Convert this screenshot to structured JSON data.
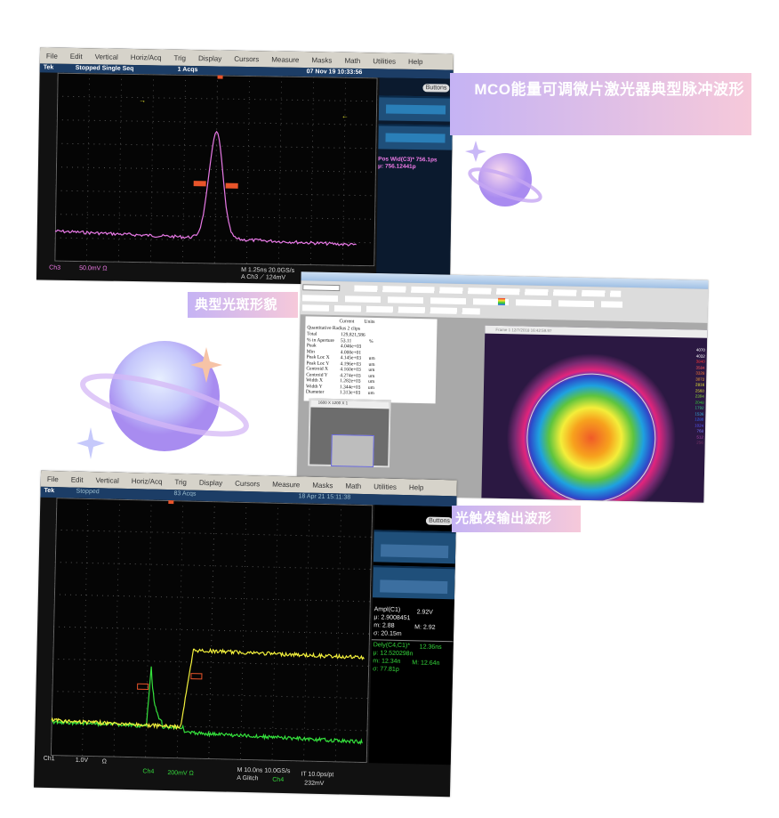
{
  "labels": {
    "pulse": "MCO能量可调微片激光器典型脉冲波形",
    "spot": "典型光斑形貌",
    "trigger": "光触发输出波形"
  },
  "colors": {
    "label_gradient_start": "#c5b3f4",
    "label_gradient_end": "#f6c9da",
    "ch3": "#e879e6",
    "ch1": "#f2f03c",
    "ch4": "#34e03c"
  },
  "scope1": {
    "menu": [
      "File",
      "Edit",
      "Vertical",
      "Horiz/Acq",
      "Trig",
      "Display",
      "Cursors",
      "Measure",
      "Masks",
      "Math",
      "Utilities",
      "Help"
    ],
    "brand": "Tek",
    "state": "Stopped Single Seq",
    "acqs": "1 Acqs",
    "datetime": "07 Nov 19 10:33:56",
    "buttons": "Buttons",
    "meas_line1": "Pos Wid(C3)* 756.1ps",
    "meas_line2": "μ: 756.12441p",
    "ch_label": "Ch3",
    "ch_scale": "50.0mV Ω",
    "timebase": "M 1.25ns 20.0GS/s",
    "trigger": "A Ch3 ⟋ 124mV"
  },
  "scope2": {
    "menu": [
      "File",
      "Edit",
      "Vertical",
      "Horiz/Acq",
      "Trig",
      "Display",
      "Cursors",
      "Measure",
      "Masks",
      "Math",
      "Utilities",
      "Help"
    ],
    "brand": "Tek",
    "state": "Stopped",
    "acqs": "83 Acqs",
    "datetime": "18 Apr 21 15:11:38",
    "buttons": "Buttons",
    "ampl": {
      "title": "Ampl(C1)",
      "value": "2.92V",
      "mu": "μ: 2.9008451",
      "m": "m: 2.88",
      "M": "M: 2.92",
      "sigma": "σ: 20.15m"
    },
    "dely": {
      "title": "Dely(C4,C1)*",
      "value": "12.36ns",
      "mu": "μ: 12.520298n",
      "m": "m: 12.34n",
      "M": "M: 12.64n",
      "sigma": "σ: 77.81p"
    },
    "ch1_label": "Ch1",
    "ch1_scale": "1.0V",
    "ch1_ohm": "Ω",
    "ch4_label": "Ch4",
    "ch4_scale": "200mV Ω",
    "timebase": "M 10.0ns 10.0GS/s",
    "it": "IT 10.0ps/pt",
    "trigger": "A Glitch",
    "trig_ch": "Ch4",
    "trig_level": "232mV"
  },
  "profiler": {
    "table_headers": [
      "Current",
      "Units"
    ],
    "section": "Quantitative  Radius 2 clips",
    "rows": [
      {
        "name": "Total",
        "value": "129,821,586",
        "unit": ""
      },
      {
        "name": "% in Aperture",
        "value": "53.11",
        "unit": "%"
      },
      {
        "name": "Peak",
        "value": "4.046e+03",
        "unit": ""
      },
      {
        "name": "Min",
        "value": "4.000e+01",
        "unit": ""
      },
      {
        "name": "Peak Loc X",
        "value": "4.145e+03",
        "unit": "um"
      },
      {
        "name": "Peak Loc Y",
        "value": "4.196e+03",
        "unit": "um"
      },
      {
        "name": "Centroid X",
        "value": "4.160e+03",
        "unit": "um"
      },
      {
        "name": "Centroid Y",
        "value": "4.274e+03",
        "unit": "um"
      },
      {
        "name": "Width X",
        "value": "1.282e+03",
        "unit": "um"
      },
      {
        "name": "Width Y",
        "value": "1.344e+03",
        "unit": "um"
      },
      {
        "name": "Diameter",
        "value": "1.313e+03",
        "unit": "um"
      }
    ],
    "thumb_title": "1600 X 1200 X 1",
    "image_title": "Frame 1 12/7/2018 16:42:59.97",
    "color_scale": [
      "4070",
      "4032",
      "3840",
      "3584",
      "3328",
      "3072",
      "2816",
      "2560",
      "2304",
      "2048",
      "1792",
      "1536",
      "1280",
      "1024",
      "768",
      "512",
      "256"
    ]
  }
}
